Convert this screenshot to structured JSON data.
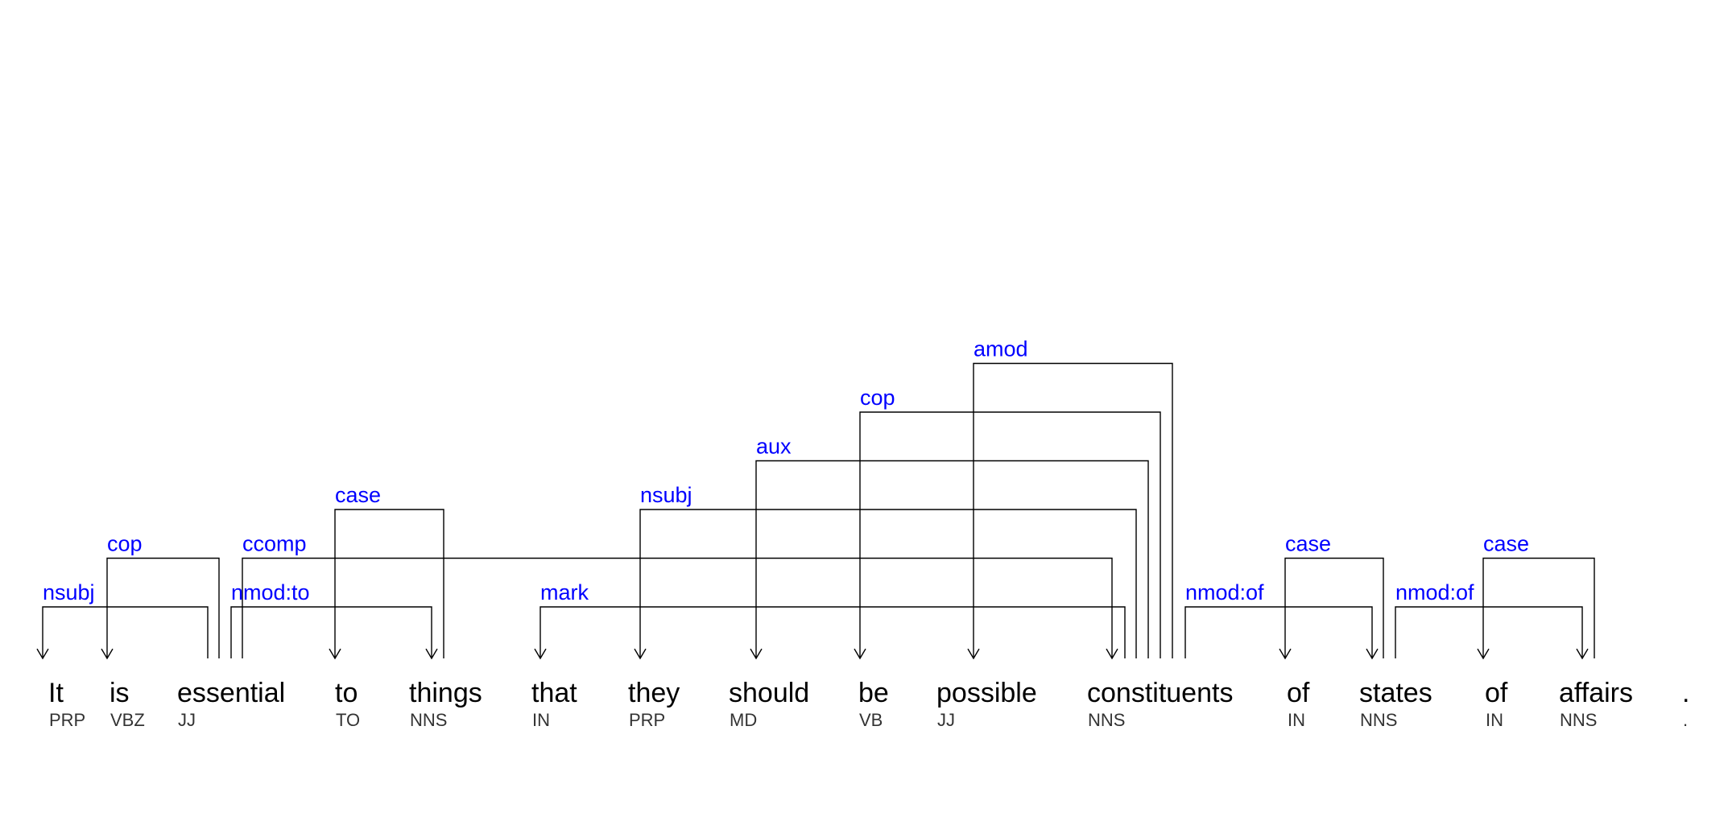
{
  "diagram": {
    "tokens": [
      {
        "word": "It",
        "tag": "PRP"
      },
      {
        "word": "is",
        "tag": "VBZ"
      },
      {
        "word": "essential",
        "tag": "JJ"
      },
      {
        "word": "to",
        "tag": "TO"
      },
      {
        "word": "things",
        "tag": "NNS"
      },
      {
        "word": "that",
        "tag": "IN"
      },
      {
        "word": "they",
        "tag": "PRP"
      },
      {
        "word": "should",
        "tag": "MD"
      },
      {
        "word": "be",
        "tag": "VB"
      },
      {
        "word": "possible",
        "tag": "JJ"
      },
      {
        "word": "constituents",
        "tag": "NNS"
      },
      {
        "word": "of",
        "tag": "IN"
      },
      {
        "word": "states",
        "tag": "NNS"
      },
      {
        "word": "of",
        "tag": "IN"
      },
      {
        "word": "affairs",
        "tag": "NNS"
      },
      {
        "word": ".",
        "tag": "."
      }
    ],
    "arcs": [
      {
        "label": "nsubj",
        "head": 2,
        "dependent": 0
      },
      {
        "label": "cop",
        "head": 2,
        "dependent": 1
      },
      {
        "label": "ccomp",
        "head": 2,
        "dependent": 10
      },
      {
        "label": "nmod:to",
        "head": 2,
        "dependent": 4
      },
      {
        "label": "case",
        "head": 4,
        "dependent": 3
      },
      {
        "label": "mark",
        "head": 10,
        "dependent": 5
      },
      {
        "label": "nsubj",
        "head": 10,
        "dependent": 6
      },
      {
        "label": "aux",
        "head": 10,
        "dependent": 7
      },
      {
        "label": "cop",
        "head": 10,
        "dependent": 8
      },
      {
        "label": "amod",
        "head": 10,
        "dependent": 9
      },
      {
        "label": "nmod:of",
        "head": 10,
        "dependent": 12
      },
      {
        "label": "case",
        "head": 12,
        "dependent": 11
      },
      {
        "label": "nmod:of",
        "head": 12,
        "dependent": 14
      },
      {
        "label": "case",
        "head": 14,
        "dependent": 13
      }
    ]
  }
}
